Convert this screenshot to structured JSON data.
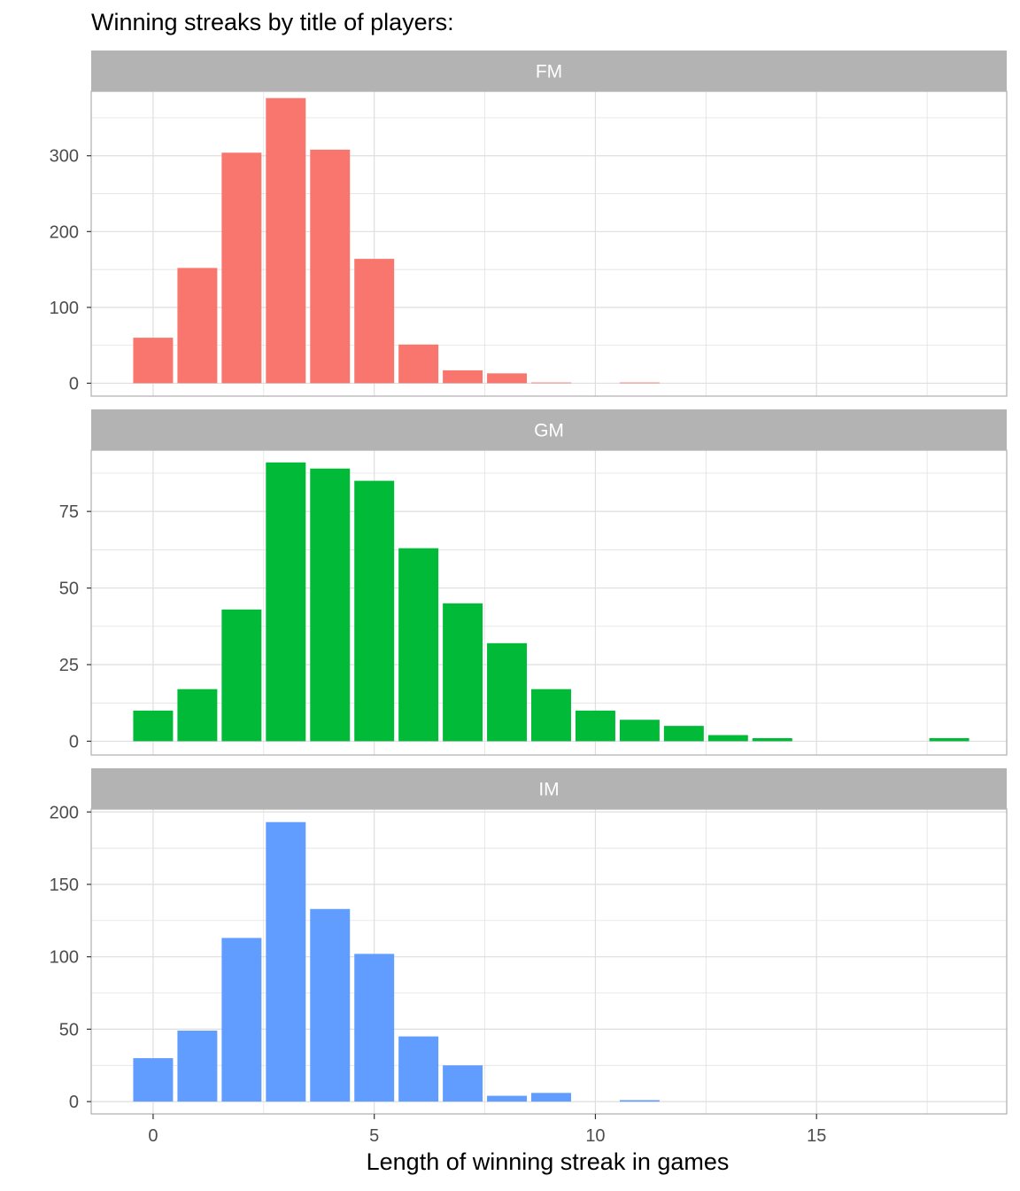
{
  "chart_data": {
    "type": "bar",
    "title": "Winning streaks by title of players:",
    "xlabel": "Length of winning streak in games",
    "ylabel": "",
    "x_ticks": [
      0,
      5,
      10,
      15
    ],
    "xlim": [
      -1.4,
      19.3
    ],
    "facet_layout": "vertical",
    "colors": {
      "FM": "#F8766D",
      "GM": "#00BA38",
      "IM": "#619CFF",
      "strip_bg": "#B3B3B3",
      "grid": "#DEDEDE",
      "panel_border": "#B3B3B3"
    },
    "panels": [
      {
        "title": "FM",
        "ylim": [
          -17,
          385
        ],
        "y_ticks": [
          0,
          100,
          200,
          300
        ],
        "x": [
          0,
          1,
          2,
          3,
          4,
          5,
          6,
          7,
          8,
          9,
          11
        ],
        "values": [
          60,
          152,
          304,
          376,
          308,
          164,
          51,
          17,
          13,
          1,
          1
        ]
      },
      {
        "title": "GM",
        "ylim": [
          -4.5,
          95
        ],
        "y_ticks": [
          0,
          25,
          50,
          75
        ],
        "x": [
          0,
          1,
          2,
          3,
          4,
          5,
          6,
          7,
          8,
          9,
          10,
          11,
          12,
          13,
          14,
          18
        ],
        "values": [
          10,
          17,
          43,
          91,
          89,
          85,
          63,
          45,
          32,
          17,
          10,
          7,
          5,
          2,
          1,
          1
        ]
      },
      {
        "title": "IM",
        "ylim": [
          -8.5,
          202
        ],
        "y_ticks": [
          0,
          50,
          100,
          150,
          200
        ],
        "x": [
          0,
          1,
          2,
          3,
          4,
          5,
          6,
          7,
          8,
          9,
          11
        ],
        "values": [
          30,
          49,
          113,
          193,
          133,
          102,
          45,
          25,
          4,
          6,
          1
        ]
      }
    ]
  }
}
